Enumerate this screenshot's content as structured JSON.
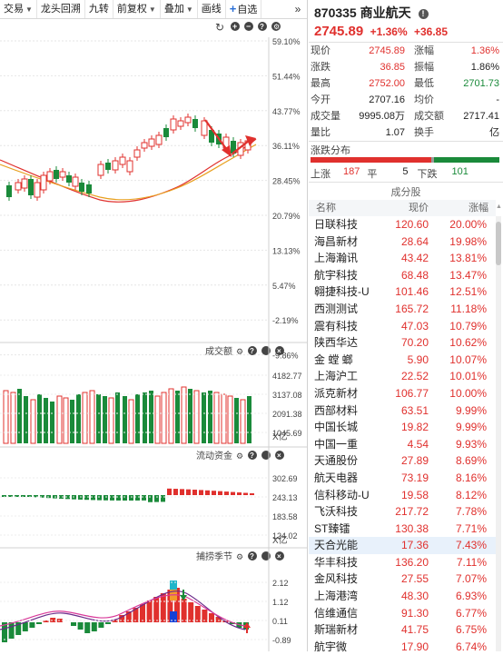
{
  "toolbar": {
    "items": [
      {
        "label": "交易",
        "dropdown": true
      },
      {
        "label": "龙头回溯",
        "dropdown": false
      },
      {
        "label": "九转",
        "dropdown": false
      },
      {
        "label": "前复权",
        "dropdown": true
      },
      {
        "label": "叠加",
        "dropdown": true
      },
      {
        "label": "画线",
        "dropdown": false
      }
    ],
    "add_watch": "自选",
    "more": "»"
  },
  "main_chart": {
    "right_axis": [
      "59.10%",
      "51.44%",
      "43.77%",
      "36.11%",
      "28.45%",
      "20.79%",
      "13.13%",
      "5.47%",
      "-2.19%",
      "-9.86%"
    ]
  },
  "volume_panel": {
    "title": "成交额",
    "axis": [
      "4182.77",
      "3137.08",
      "2091.38",
      "1045.69"
    ],
    "unit": "X亿"
  },
  "flow_panel": {
    "title": "流动资金",
    "axis": [
      "302.69",
      "243.13",
      "183.58",
      "124.02"
    ],
    "unit": "X亿"
  },
  "season_panel": {
    "title": "捕捞季节",
    "axis": [
      "2.12",
      "1.12",
      "0.11",
      "-0.89"
    ]
  },
  "stock": {
    "code": "870335",
    "name": "商业航天",
    "price": "2745.89",
    "change_pct": "+1.36%",
    "change": "+36.85"
  },
  "quote": [
    {
      "l": "现价",
      "v": "2745.89",
      "vc": "red",
      "l2": "涨幅",
      "v2": "1.36%",
      "v2c": "red"
    },
    {
      "l": "涨跌",
      "v": "36.85",
      "vc": "red",
      "l2": "振幅",
      "v2": "1.86%",
      "v2c": ""
    },
    {
      "l": "最高",
      "v": "2752.00",
      "vc": "red",
      "l2": "最低",
      "v2": "2701.73",
      "v2c": "green"
    },
    {
      "l": "今开",
      "v": "2707.16",
      "vc": "",
      "l2": "均价",
      "v2": "-",
      "v2c": ""
    },
    {
      "l": "成交量",
      "v": "9995.08万",
      "vc": "",
      "l2": "成交额",
      "v2": "2717.41亿",
      "v2c": ""
    },
    {
      "l": "量比",
      "v": "1.07",
      "vc": "",
      "l2": "换手",
      "v2": "-",
      "v2c": ""
    }
  ],
  "distribution": {
    "title": "涨跌分布",
    "up_label": "上涨",
    "up": 187,
    "flat_label": "平",
    "flat": 5,
    "down_label": "下跌",
    "down": 101,
    "colors": {
      "up": "#e0302d",
      "flat": "#9a9a9a",
      "down": "#1a8a3a"
    }
  },
  "constituents": {
    "title": "成分股",
    "headers": {
      "name": "名称",
      "price": "现价",
      "pct": "涨幅"
    },
    "items": [
      {
        "name": "日联科技",
        "price": "120.60",
        "pct": "20.00%"
      },
      {
        "name": "海昌新材",
        "price": "28.64",
        "pct": "19.98%"
      },
      {
        "name": "上海瀚讯",
        "price": "43.42",
        "pct": "13.81%"
      },
      {
        "name": "航宇科技",
        "price": "68.48",
        "pct": "13.47%"
      },
      {
        "name": "翱捷科技-U",
        "price": "101.46",
        "pct": "12.51%"
      },
      {
        "name": "西测测试",
        "price": "165.72",
        "pct": "11.18%"
      },
      {
        "name": "震有科技",
        "price": "47.03",
        "pct": "10.79%"
      },
      {
        "name": "陕西华达",
        "price": "70.20",
        "pct": "10.62%"
      },
      {
        "name": "金 螳 螂",
        "price": "5.90",
        "pct": "10.07%"
      },
      {
        "name": "上海沪工",
        "price": "22.52",
        "pct": "10.01%"
      },
      {
        "name": "派克新材",
        "price": "106.77",
        "pct": "10.00%"
      },
      {
        "name": "西部材料",
        "price": "63.51",
        "pct": "9.99%"
      },
      {
        "name": "中国长城",
        "price": "19.82",
        "pct": "9.99%"
      },
      {
        "name": "中国一重",
        "price": "4.54",
        "pct": "9.93%"
      },
      {
        "name": "天通股份",
        "price": "27.89",
        "pct": "8.69%"
      },
      {
        "name": "航天电器",
        "price": "73.19",
        "pct": "8.16%"
      },
      {
        "name": "信科移动-U",
        "price": "19.58",
        "pct": "8.12%"
      },
      {
        "name": "飞沃科技",
        "price": "217.72",
        "pct": "7.78%"
      },
      {
        "name": "ST臻镭",
        "price": "130.38",
        "pct": "7.71%"
      },
      {
        "name": "天合光能",
        "price": "17.36",
        "pct": "7.43%",
        "selected": true
      },
      {
        "name": "华丰科技",
        "price": "136.20",
        "pct": "7.11%"
      },
      {
        "name": "金风科技",
        "price": "27.55",
        "pct": "7.07%"
      },
      {
        "name": "上海港湾",
        "price": "48.30",
        "pct": "6.93%"
      },
      {
        "name": "信维通信",
        "price": "91.30",
        "pct": "6.77%"
      },
      {
        "name": "斯瑞新材",
        "price": "41.75",
        "pct": "6.75%"
      },
      {
        "name": "航宇微",
        "price": "17.90",
        "pct": "6.74%"
      }
    ]
  },
  "colors": {
    "up": "#e0302d",
    "down": "#1a8a3a",
    "ma1": "#e0302d",
    "ma2": "#e8a020",
    "grid": "#d0d0d0"
  }
}
